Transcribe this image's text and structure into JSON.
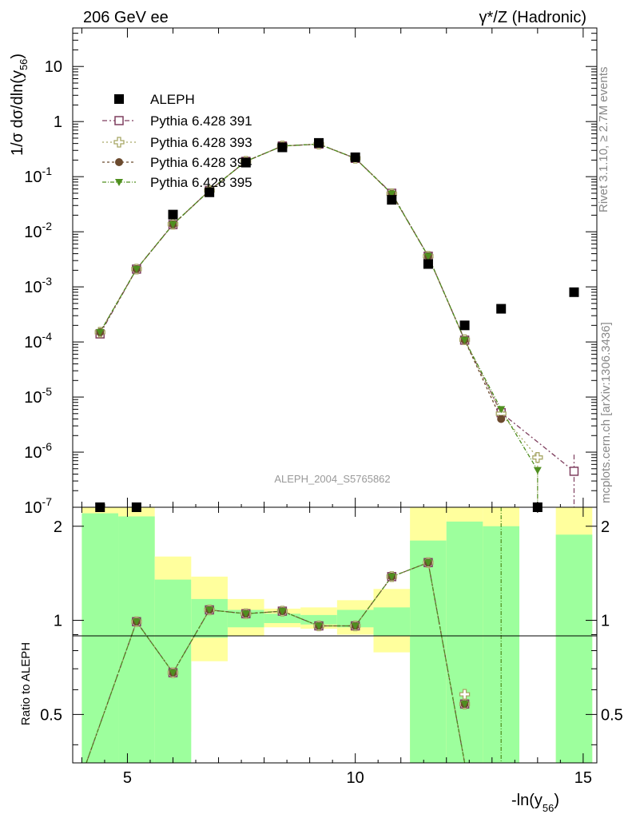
{
  "header": {
    "left": "206 GeV ee",
    "right": "γ*/Z (Hadronic)"
  },
  "side_labels": {
    "rivet": "Rivet 3.1.10, ≥ 2.7M events",
    "mcplots": "mcplots.cern.ch [arXiv:1306.3436]"
  },
  "watermark": "ALEPH_2004_S5765862",
  "axes": {
    "y_top_label": "1/σ  dσ/dln(y",
    "y_top_sub": "56",
    "y_top_close": ")",
    "y_bottom_label": "Ratio to ALEPH",
    "x_label": "-ln(y",
    "x_sub": "56",
    "x_close": ")",
    "top_y_ticks": [
      {
        "base": "10",
        "exp": "-7",
        "v": -7
      },
      {
        "base": "10",
        "exp": "-6",
        "v": -6
      },
      {
        "base": "10",
        "exp": "-5",
        "v": -5
      },
      {
        "base": "10",
        "exp": "-4",
        "v": -4
      },
      {
        "base": "10",
        "exp": "-3",
        "v": -3
      },
      {
        "base": "10",
        "exp": "-2",
        "v": -2
      },
      {
        "base": "10",
        "exp": "-1",
        "v": -1
      },
      {
        "base": "1",
        "exp": "",
        "v": 0
      },
      {
        "base": "10",
        "exp": "",
        "v": 1
      }
    ],
    "ratio_y_ticks": [
      "0.5",
      "1",
      "2"
    ],
    "x_ticks": [
      "5",
      "10",
      "15"
    ]
  },
  "colors": {
    "aleph": "#000000",
    "p391": "#7f3f5f",
    "p393": "#a6a665",
    "p394": "#6b4a2e",
    "p395": "#4f8f1f",
    "band_green": "#9dff9d",
    "band_yellow": "#ffff9d"
  },
  "chart_data": {
    "type": "scatter",
    "x_range": [
      3.8,
      15.3
    ],
    "y_log_range": [
      1e-07,
      50
    ],
    "ratio_range": [
      0.35,
      2.3
    ],
    "legend_position": "top-left",
    "legend": [
      "ALEPH",
      "Pythia 6.428 391",
      "Pythia 6.428 393",
      "Pythia 6.428 394",
      "Pythia 6.428 395"
    ],
    "bins": [
      {
        "lo": 4.0,
        "hi": 4.8,
        "x": 4.4
      },
      {
        "lo": 4.8,
        "hi": 5.6,
        "x": 5.2
      },
      {
        "lo": 5.6,
        "hi": 6.4,
        "x": 6.0
      },
      {
        "lo": 6.4,
        "hi": 7.2,
        "x": 6.8
      },
      {
        "lo": 7.2,
        "hi": 8.0,
        "x": 7.6
      },
      {
        "lo": 8.0,
        "hi": 8.8,
        "x": 8.4
      },
      {
        "lo": 8.8,
        "hi": 9.6,
        "x": 9.2
      },
      {
        "lo": 9.6,
        "hi": 10.4,
        "x": 10.0
      },
      {
        "lo": 10.4,
        "hi": 11.2,
        "x": 10.8
      },
      {
        "lo": 11.2,
        "hi": 12.0,
        "x": 11.6
      },
      {
        "lo": 12.0,
        "hi": 12.8,
        "x": 12.4
      },
      {
        "lo": 12.8,
        "hi": 13.6,
        "x": 13.2
      },
      {
        "lo": 13.6,
        "hi": 14.4,
        "x": 14.0
      },
      {
        "lo": 14.4,
        "hi": 15.2,
        "x": 14.8
      }
    ],
    "aleph": [
      0,
      0,
      0.0205,
      0.052,
      0.18,
      0.34,
      0.41,
      0.225,
      0.038,
      0.0026,
      0.0002,
      0.0004,
      0,
      0.0008
    ],
    "series": [
      {
        "name": "Pythia 6.428 391",
        "values": [
          0.00014,
          0.0021,
          0.0135,
          0.056,
          0.19,
          0.36,
          0.39,
          0.215,
          0.05,
          0.0036,
          0.000108,
          5.2e-06,
          null,
          4.5e-07
        ]
      },
      {
        "name": "Pythia 6.428 393",
        "values": [
          0.00015,
          0.0021,
          0.0137,
          0.056,
          0.19,
          0.36,
          0.39,
          0.216,
          0.049,
          0.0036,
          0.00011,
          5e-06,
          8e-07,
          null
        ]
      },
      {
        "name": "Pythia 6.428 394",
        "values": [
          0.00015,
          0.0021,
          0.0136,
          0.056,
          0.19,
          0.36,
          0.39,
          0.216,
          0.049,
          0.0036,
          0.000108,
          4e-06,
          null,
          null
        ]
      },
      {
        "name": "Pythia 6.428 395",
        "values": [
          0.00015,
          0.0021,
          0.0136,
          0.056,
          0.19,
          0.36,
          0.39,
          0.216,
          0.049,
          0.0036,
          0.000108,
          6e-06,
          4.7e-07,
          null
        ]
      }
    ],
    "ratio": [
      0.28,
      0.99,
      0.68,
      1.08,
      1.05,
      1.07,
      0.96,
      0.96,
      1.38,
      1.53,
      0.54
    ],
    "ratio_393_last": 0.58,
    "bands": [
      {
        "green": [
          0.3,
          2.2
        ],
        "yellow": [
          0.3,
          2.3
        ]
      },
      {
        "green": [
          0.3,
          2.15
        ],
        "yellow": [
          0.3,
          2.3
        ]
      },
      {
        "green": [
          0.3,
          1.35
        ],
        "yellow": [
          0.44,
          1.6
        ]
      },
      {
        "green": [
          0.88,
          1.17
        ],
        "yellow": [
          0.74,
          1.38
        ]
      },
      {
        "green": [
          0.95,
          1.08
        ],
        "yellow": [
          0.89,
          1.17
        ]
      },
      {
        "green": [
          0.98,
          1.05
        ],
        "yellow": [
          0.95,
          1.09
        ]
      },
      {
        "green": [
          0.97,
          1.04
        ],
        "yellow": [
          0.94,
          1.1
        ]
      },
      {
        "green": [
          0.95,
          1.08
        ],
        "yellow": [
          0.9,
          1.16
        ]
      },
      {
        "green": [
          0.89,
          1.1
        ],
        "yellow": [
          0.79,
          1.26
        ]
      },
      {
        "green": [
          0.3,
          1.8
        ],
        "yellow": [
          0.3,
          2.3
        ]
      },
      {
        "green": [
          0.3,
          2.07
        ],
        "yellow": [
          0.3,
          2.3
        ]
      },
      {
        "green": [
          0.3,
          2.0
        ],
        "yellow": [
          0.3,
          2.3
        ]
      },
      null,
      {
        "green": [
          0.3,
          1.88
        ],
        "yellow": [
          0.3,
          2.3
        ]
      }
    ]
  }
}
